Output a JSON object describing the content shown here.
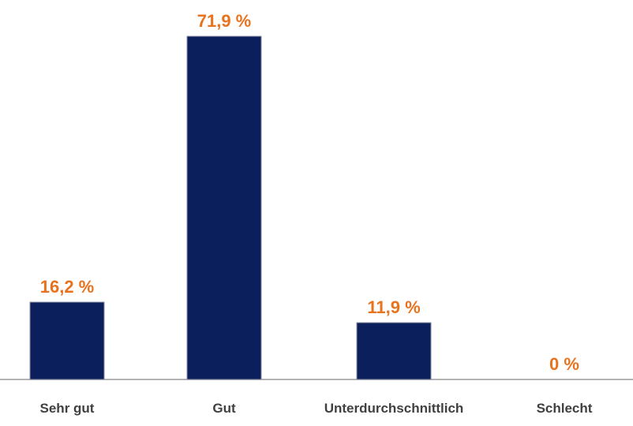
{
  "chart_data": {
    "type": "bar",
    "categories": [
      "Sehr gut",
      "Gut",
      "Unterdurchschnittlich",
      "Schlecht"
    ],
    "values": [
      16.2,
      71.9,
      11.9,
      0
    ],
    "value_labels": [
      "16,2 %",
      "71,9 %",
      "11,9 %",
      "0 %"
    ],
    "title": "",
    "xlabel": "",
    "ylabel": "",
    "ylim": [
      0,
      80
    ],
    "grid": false,
    "legend": "none",
    "colors": {
      "bar": "#0a1f5c",
      "label": "#e8731e",
      "axis": "#9a9a9a"
    }
  }
}
